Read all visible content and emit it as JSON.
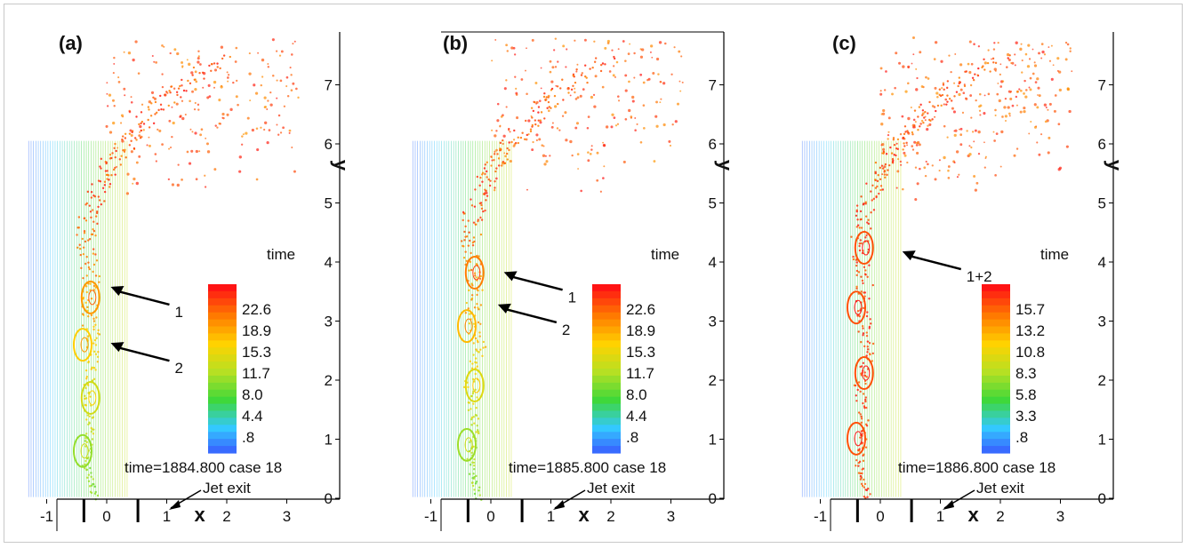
{
  "chart_data": [
    {
      "type": "scatter",
      "panel_label": "(a)",
      "xlabel": "x",
      "ylabel": "y",
      "xlim": [
        -1.3,
        3.3
      ],
      "ylim": [
        0,
        7.8
      ],
      "x_ticks": [
        "-1",
        "0",
        "1",
        "2",
        "3"
      ],
      "y_ticks": [
        "0",
        "1",
        "2",
        "3",
        "4",
        "5",
        "6",
        "7"
      ],
      "colorbar": {
        "title": "time",
        "labels": [
          "22.6",
          "18.9",
          "15.3",
          "11.7",
          "8.0",
          "4.4",
          ".8"
        ]
      },
      "info_text": "time=1884.800 case 18",
      "annotations": [
        {
          "text": "Jet exit",
          "x": 0.55,
          "y": 0.0
        },
        {
          "text": "1",
          "x": -0.2,
          "y": 3.85
        },
        {
          "text": "2",
          "x": -0.2,
          "y": 2.9
        }
      ]
    },
    {
      "type": "scatter",
      "panel_label": "(b)",
      "xlabel": "x",
      "ylabel": "y",
      "xlim": [
        -1.3,
        3.3
      ],
      "ylim": [
        0,
        7.8
      ],
      "x_ticks": [
        "-1",
        "0",
        "1",
        "2",
        "3"
      ],
      "y_ticks": [
        "0",
        "1",
        "2",
        "3",
        "4",
        "5",
        "6",
        "7"
      ],
      "colorbar": {
        "title": "time",
        "labels": [
          "22.6",
          "18.9",
          "15.3",
          "11.7",
          "8.0",
          "4.4",
          ".8"
        ]
      },
      "info_text": "time=1885.800 case 18",
      "annotations": [
        {
          "text": "Jet exit",
          "x": 0.55,
          "y": 0.0
        },
        {
          "text": "1",
          "x": -0.05,
          "y": 4.1
        },
        {
          "text": "2",
          "x": -0.15,
          "y": 3.55
        }
      ]
    },
    {
      "type": "scatter",
      "panel_label": "(c)",
      "xlabel": "x",
      "ylabel": "y",
      "xlim": [
        -1.3,
        3.3
      ],
      "ylim": [
        0,
        7.8
      ],
      "x_ticks": [
        "-1",
        "0",
        "1",
        "2",
        "3"
      ],
      "y_ticks": [
        "0",
        "1",
        "2",
        "3",
        "4",
        "5",
        "6",
        "7"
      ],
      "colorbar": {
        "title": "time",
        "labels": [
          "15.7",
          "13.2",
          "10.8",
          "8.3",
          "5.8",
          "3.3",
          ".8"
        ]
      },
      "info_text": "time=1886.800 case 18",
      "annotations": [
        {
          "text": "Jet exit",
          "x": 0.55,
          "y": 0.0
        },
        {
          "text": "1+2",
          "x": 0.1,
          "y": 4.45
        }
      ]
    }
  ],
  "colors": {
    "ramp": [
      "#3a4cff",
      "#33c8ff",
      "#3fd83a",
      "#b6e023",
      "#ffd200",
      "#ff7a00",
      "#ff1414"
    ],
    "axis": "#000000",
    "arrow": "#000000",
    "frame": "#c8c8c8"
  }
}
